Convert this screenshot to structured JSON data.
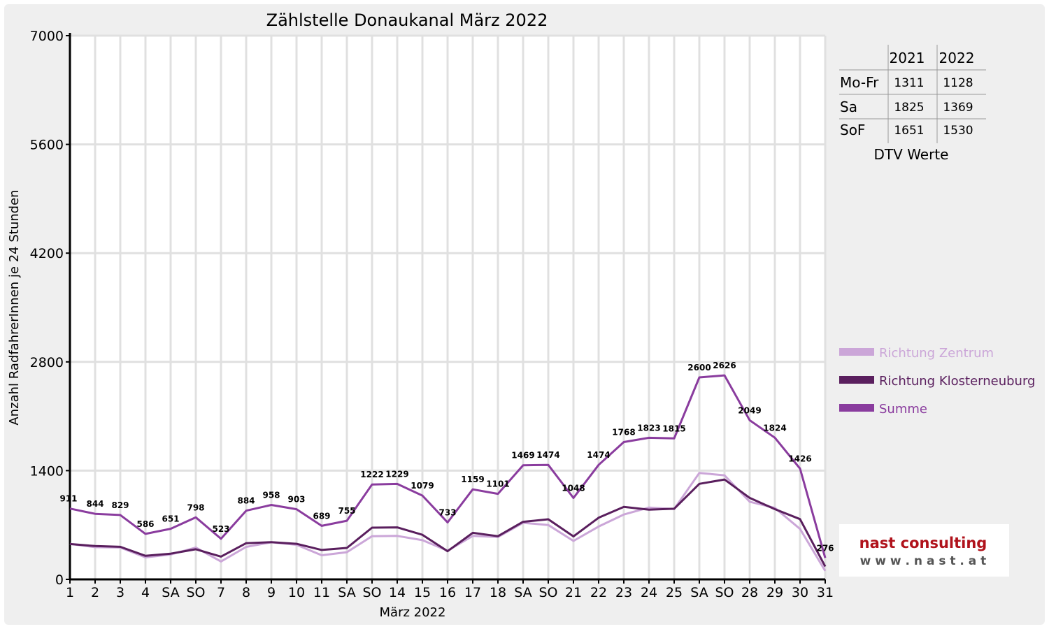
{
  "chart_data": {
    "type": "line",
    "title": "Zählstelle Donaukanal März 2022",
    "xlabel": "März 2022",
    "ylabel": "Anzahl RadfahrerInnen je 24 Stunden",
    "ylim": [
      0,
      7000
    ],
    "yticks": [
      0,
      1400,
      2800,
      4200,
      5600,
      7000
    ],
    "grid": true,
    "legend_position": "right",
    "categories": [
      "1",
      "2",
      "3",
      "4",
      "SA",
      "SO",
      "7",
      "8",
      "9",
      "10",
      "11",
      "SA",
      "SO",
      "14",
      "15",
      "16",
      "17",
      "18",
      "SA",
      "SO",
      "21",
      "22",
      "23",
      "24",
      "25",
      "SA",
      "SO",
      "28",
      "29",
      "30",
      "31"
    ],
    "highlight_labels": [
      "SO"
    ],
    "series": [
      {
        "name": "Richtung Zentrum",
        "color": "#cba6d8",
        "values": [
          456,
          415,
          410,
          283,
          320,
          410,
          230,
          418,
          478,
          445,
          310,
          350,
          556,
          560,
          505,
          370,
          560,
          545,
          728,
          700,
          495,
          680,
          835,
          925,
          905,
          1370,
          1340,
          1000,
          920,
          650,
          110
        ]
      },
      {
        "name": "Richtung Klosterneuburg",
        "color": "#5a1f5e",
        "values": [
          455,
          429,
          419,
          303,
          331,
          388,
          293,
          466,
          480,
          458,
          379,
          405,
          666,
          669,
          574,
          363,
          599,
          556,
          741,
          774,
          553,
          794,
          933,
          898,
          910,
          1230,
          1286,
          1049,
          904,
          776,
          166
        ]
      },
      {
        "name": "Summe",
        "color": "#8a3c9e",
        "values": [
          911,
          844,
          829,
          586,
          651,
          798,
          523,
          884,
          958,
          903,
          689,
          755,
          1222,
          1229,
          1079,
          733,
          1159,
          1101,
          1469,
          1474,
          1048,
          1474,
          1768,
          1823,
          1815,
          2600,
          2626,
          2049,
          1824,
          1426,
          276
        ]
      }
    ],
    "data_labels": [
      911,
      844,
      829,
      586,
      651,
      798,
      523,
      884,
      958,
      903,
      689,
      755,
      1222,
      1229,
      1079,
      733,
      1159,
      1101,
      1469,
      1474,
      1048,
      1474,
      1768,
      1823,
      1815,
      2600,
      2626,
      2049,
      1824,
      1426,
      276
    ]
  },
  "dtv_table": {
    "headers": [
      "",
      "2021",
      "2022"
    ],
    "rows": [
      {
        "label": "Mo-Fr",
        "v2021": "1311",
        "v2022": "1128"
      },
      {
        "label": "Sa",
        "v2021": "1825",
        "v2022": "1369"
      },
      {
        "label": "SoF",
        "v2021": "1651",
        "v2022": "1530"
      }
    ],
    "caption": "DTV Werte"
  },
  "logo": {
    "line1": "nast consulting",
    "line2": "w w w . n a s t . a t"
  }
}
